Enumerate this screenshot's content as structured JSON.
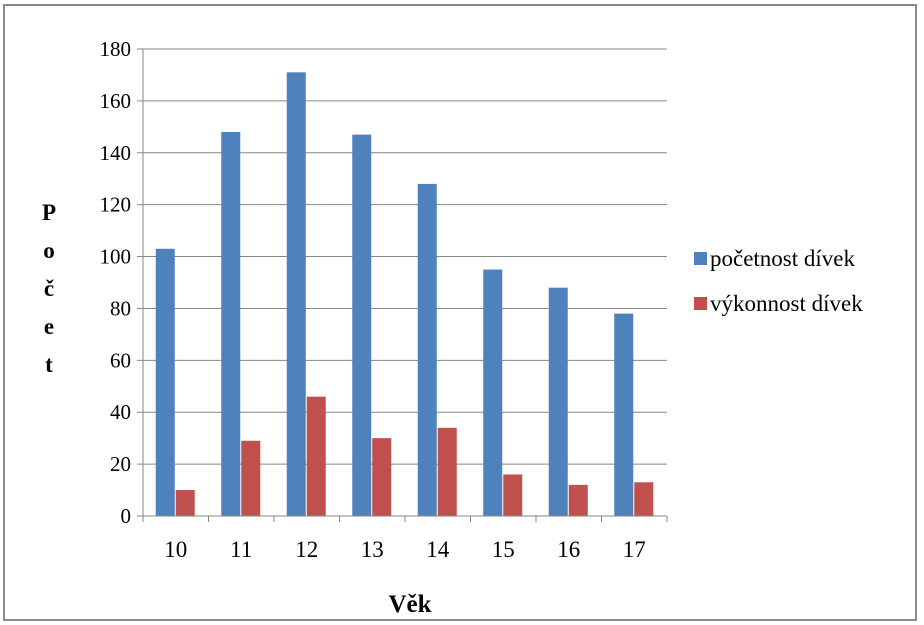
{
  "chart_data": {
    "type": "bar",
    "title": "",
    "xlabel": "Věk",
    "ylabel": "Počet",
    "categories": [
      "10",
      "11",
      "12",
      "13",
      "14",
      "15",
      "16",
      "17"
    ],
    "ylim": [
      0,
      180
    ],
    "yticks": [
      0,
      20,
      40,
      60,
      80,
      100,
      120,
      140,
      160,
      180
    ],
    "grid": true,
    "legend_position": "right",
    "series": [
      {
        "name": "početnost dívek",
        "color": "#4f81bd",
        "values": [
          103,
          148,
          171,
          147,
          128,
          95,
          88,
          78
        ]
      },
      {
        "name": "výkonnost dívek",
        "color": "#c0504d",
        "values": [
          10,
          29,
          46,
          30,
          34,
          16,
          12,
          13
        ]
      }
    ]
  }
}
